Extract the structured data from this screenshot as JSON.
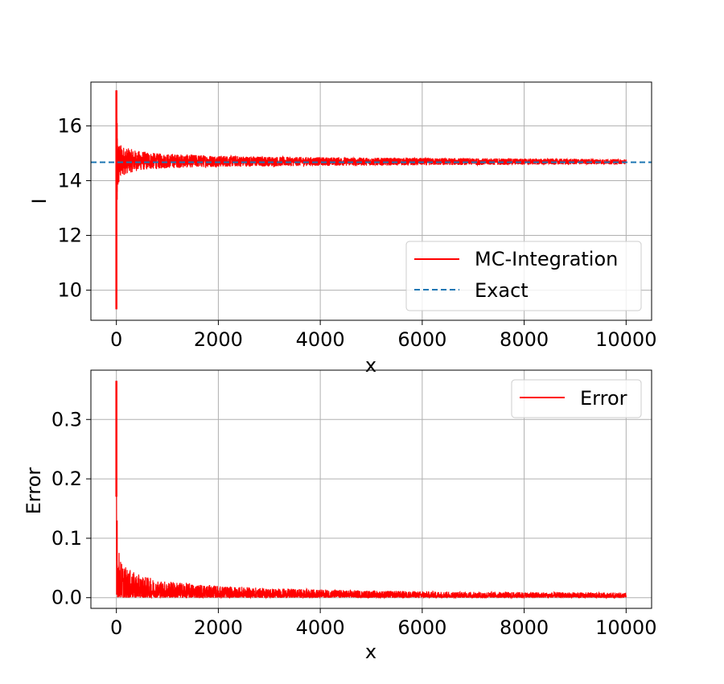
{
  "colors": {
    "mc_line": "#ff0000",
    "exact_line": "#1f77b4",
    "grid": "#b0b0b0",
    "axes": "#000000",
    "background": "#ffffff",
    "legend_border": "#cccccc"
  },
  "chart_data": [
    {
      "type": "line",
      "title": "",
      "xlabel": "x",
      "ylabel": "I",
      "xlim": [
        -500,
        10500
      ],
      "ylim": [
        8.9,
        17.6
      ],
      "xticks": [
        0,
        2000,
        4000,
        6000,
        8000,
        10000
      ],
      "xtick_labels": [
        "0",
        "2000",
        "4000",
        "6000",
        "8000",
        "10000"
      ],
      "yticks": [
        10,
        12,
        14,
        16
      ],
      "ytick_labels": [
        "10",
        "12",
        "14",
        "16"
      ],
      "grid": true,
      "legend_position": "lower-right",
      "series": [
        {
          "name": "MC-Integration",
          "style": "solid",
          "color": "#ff0000",
          "x": [
            0,
            5,
            10,
            20,
            30,
            40,
            60,
            80,
            100,
            150,
            200,
            300,
            400,
            600,
            800,
            1000,
            1500,
            2000,
            3000,
            4000,
            5000,
            6000,
            7000,
            8000,
            9000,
            10000
          ],
          "lower": [
            9.3,
            12.7,
            13.3,
            12.9,
            13.4,
            13.6,
            13.9,
            14.0,
            14.1,
            14.2,
            14.25,
            14.3,
            14.35,
            14.4,
            14.42,
            14.45,
            14.48,
            14.5,
            14.52,
            14.54,
            14.55,
            14.56,
            14.57,
            14.58,
            14.59,
            14.6
          ],
          "upper": [
            17.3,
            16.5,
            16.1,
            15.8,
            15.6,
            15.5,
            15.4,
            15.35,
            15.3,
            15.25,
            15.2,
            15.15,
            15.1,
            15.05,
            15.0,
            14.98,
            14.95,
            14.92,
            14.88,
            14.86,
            14.84,
            14.83,
            14.82,
            14.81,
            14.8,
            14.78
          ]
        },
        {
          "name": "Exact",
          "style": "dashed",
          "color": "#1f77b4",
          "value": 14.67
        }
      ]
    },
    {
      "type": "line",
      "title": "",
      "xlabel": "x",
      "ylabel": "Error",
      "xlim": [
        -500,
        10500
      ],
      "ylim": [
        -0.018,
        0.383
      ],
      "xticks": [
        0,
        2000,
        4000,
        6000,
        8000,
        10000
      ],
      "xtick_labels": [
        "0",
        "2000",
        "4000",
        "6000",
        "8000",
        "10000"
      ],
      "yticks": [
        0.0,
        0.1,
        0.2,
        0.3
      ],
      "ytick_labels": [
        "0.0",
        "0.1",
        "0.2",
        "0.3"
      ],
      "grid": true,
      "legend_position": "upper-right",
      "series": [
        {
          "name": "Error",
          "style": "solid",
          "color": "#ff0000",
          "x": [
            0,
            5,
            10,
            20,
            30,
            40,
            60,
            80,
            100,
            150,
            200,
            300,
            400,
            600,
            800,
            1000,
            1500,
            2000,
            3000,
            4000,
            5000,
            6000,
            7000,
            8000,
            9000,
            10000
          ],
          "lower": [
            0.17,
            0.0,
            0.005,
            0.0,
            0.002,
            0.0,
            0.001,
            0.0,
            0.0,
            0.0,
            0.0,
            0.0,
            0.0,
            0.0,
            0.0,
            0.0,
            0.0,
            0.0,
            0.0,
            0.0,
            0.0,
            0.0,
            0.0,
            0.0,
            0.0,
            0.0
          ],
          "upper": [
            0.365,
            0.2,
            0.13,
            0.11,
            0.09,
            0.085,
            0.075,
            0.065,
            0.06,
            0.055,
            0.05,
            0.045,
            0.04,
            0.035,
            0.03,
            0.028,
            0.024,
            0.02,
            0.016,
            0.014,
            0.012,
            0.011,
            0.01,
            0.0095,
            0.009,
            0.0085
          ]
        }
      ]
    }
  ]
}
